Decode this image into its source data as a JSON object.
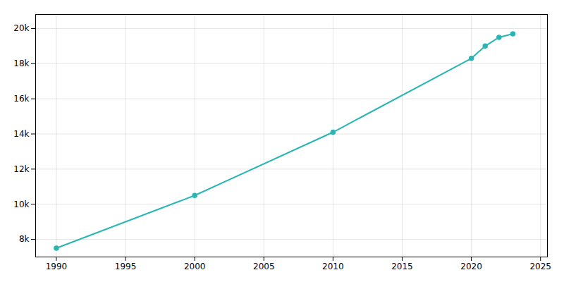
{
  "chart_data": {
    "type": "line",
    "x": [
      1990,
      2000,
      2010,
      2020,
      2021,
      2022,
      2023
    ],
    "values": [
      7500,
      10500,
      14100,
      18300,
      19000,
      19500,
      19700
    ],
    "color": "#2ab5b5",
    "marker": "circle",
    "xlim": [
      1988.5,
      2025.5
    ],
    "xticks": [
      1990,
      1995,
      2000,
      2005,
      2010,
      2015,
      2020,
      2025
    ],
    "ylim": [
      7000,
      20800
    ],
    "yticks": [
      {
        "value": 8000,
        "label": "8k"
      },
      {
        "value": 10000,
        "label": "10k"
      },
      {
        "value": 12000,
        "label": "12k"
      },
      {
        "value": 14000,
        "label": "14k"
      },
      {
        "value": 16000,
        "label": "16k"
      },
      {
        "value": 18000,
        "label": "18k"
      },
      {
        "value": 20000,
        "label": "20k"
      }
    ],
    "grid": true
  }
}
